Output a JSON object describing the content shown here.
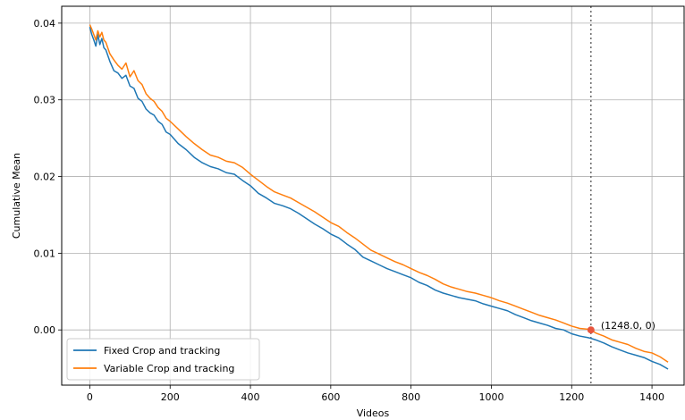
{
  "chart_data": {
    "type": "line",
    "xlabel": "Videos",
    "ylabel": "Cumulative Mean",
    "xlim": [
      -70,
      1480
    ],
    "ylim": [
      -0.0072,
      0.0422
    ],
    "xticks": [
      0,
      200,
      400,
      600,
      800,
      1000,
      1200,
      1400
    ],
    "yticks": [
      0.0,
      0.01,
      0.02,
      0.03,
      0.04
    ],
    "xtick_labels": [
      "0",
      "200",
      "400",
      "600",
      "800",
      "1000",
      "1200",
      "1400"
    ],
    "ytick_labels": [
      "0.00",
      "0.01",
      "0.02",
      "0.03",
      "0.04"
    ],
    "grid": true,
    "legend_position": "lower-left",
    "series": [
      {
        "name": "Fixed Crop and tracking",
        "color": "#1f77b4",
        "x": [
          0,
          5,
          10,
          15,
          20,
          25,
          30,
          35,
          40,
          50,
          60,
          70,
          80,
          90,
          100,
          110,
          120,
          130,
          140,
          150,
          160,
          170,
          180,
          190,
          200,
          220,
          240,
          260,
          280,
          300,
          320,
          340,
          360,
          380,
          400,
          420,
          440,
          460,
          480,
          500,
          520,
          540,
          560,
          580,
          600,
          620,
          640,
          660,
          680,
          700,
          720,
          740,
          760,
          780,
          800,
          820,
          840,
          860,
          880,
          900,
          920,
          940,
          960,
          980,
          1000,
          1020,
          1040,
          1060,
          1080,
          1100,
          1120,
          1140,
          1160,
          1180,
          1200,
          1220,
          1240,
          1248,
          1260,
          1280,
          1300,
          1320,
          1340,
          1360,
          1380,
          1400,
          1420,
          1440
        ],
        "y": [
          0.0395,
          0.0385,
          0.0378,
          0.037,
          0.0385,
          0.0372,
          0.038,
          0.0368,
          0.0365,
          0.035,
          0.0338,
          0.0335,
          0.0328,
          0.0332,
          0.0318,
          0.0315,
          0.0302,
          0.0298,
          0.0288,
          0.0283,
          0.028,
          0.0272,
          0.0268,
          0.0258,
          0.0255,
          0.0243,
          0.0235,
          0.0225,
          0.0218,
          0.0213,
          0.021,
          0.0205,
          0.0203,
          0.0195,
          0.0188,
          0.0178,
          0.0172,
          0.0165,
          0.0162,
          0.0158,
          0.0152,
          0.0145,
          0.0138,
          0.0132,
          0.0125,
          0.012,
          0.0112,
          0.0105,
          0.0095,
          0.009,
          0.0085,
          0.008,
          0.0076,
          0.0072,
          0.0068,
          0.0062,
          0.0058,
          0.0052,
          0.0048,
          0.0045,
          0.0042,
          0.004,
          0.0038,
          0.0034,
          0.0031,
          0.0028,
          0.0025,
          0.002,
          0.0016,
          0.0012,
          0.0009,
          0.0006,
          0.0002,
          0.0,
          -0.0005,
          -0.0008,
          -0.001,
          -0.0011,
          -0.0013,
          -0.0017,
          -0.0022,
          -0.0026,
          -0.003,
          -0.0033,
          -0.0036,
          -0.0041,
          -0.0045,
          -0.0051
        ]
      },
      {
        "name": "Variable Crop and tracking",
        "color": "#ff7f0e",
        "x": [
          0,
          5,
          10,
          15,
          20,
          25,
          30,
          35,
          40,
          50,
          60,
          70,
          80,
          90,
          100,
          110,
          120,
          130,
          140,
          150,
          160,
          170,
          180,
          190,
          200,
          220,
          240,
          260,
          280,
          300,
          320,
          340,
          360,
          380,
          400,
          420,
          440,
          460,
          480,
          500,
          520,
          540,
          560,
          580,
          600,
          620,
          640,
          660,
          680,
          700,
          720,
          740,
          760,
          780,
          800,
          820,
          840,
          860,
          880,
          900,
          920,
          940,
          960,
          980,
          1000,
          1020,
          1040,
          1060,
          1080,
          1100,
          1120,
          1140,
          1160,
          1180,
          1200,
          1220,
          1240,
          1248,
          1260,
          1280,
          1300,
          1320,
          1340,
          1360,
          1380,
          1400,
          1420,
          1440
        ],
        "y": [
          0.0398,
          0.0392,
          0.0385,
          0.0378,
          0.039,
          0.0382,
          0.0388,
          0.0378,
          0.0375,
          0.036,
          0.0352,
          0.0345,
          0.034,
          0.0348,
          0.033,
          0.0338,
          0.0325,
          0.032,
          0.0308,
          0.0302,
          0.0298,
          0.029,
          0.0285,
          0.0276,
          0.0272,
          0.0262,
          0.0252,
          0.0243,
          0.0235,
          0.0228,
          0.0225,
          0.022,
          0.0218,
          0.0212,
          0.0203,
          0.0195,
          0.0187,
          0.018,
          0.0176,
          0.0172,
          0.0166,
          0.016,
          0.0154,
          0.0147,
          0.014,
          0.0135,
          0.0127,
          0.012,
          0.0112,
          0.0104,
          0.0099,
          0.0094,
          0.0089,
          0.0085,
          0.008,
          0.0075,
          0.0071,
          0.0066,
          0.006,
          0.0056,
          0.0053,
          0.005,
          0.0048,
          0.0045,
          0.0042,
          0.0038,
          0.0035,
          0.0031,
          0.0027,
          0.0023,
          0.0019,
          0.0016,
          0.0013,
          0.0009,
          0.0005,
          0.0002,
          0.0001,
          0.0,
          -0.0004,
          -0.0008,
          -0.0013,
          -0.0016,
          -0.0019,
          -0.0024,
          -0.0028,
          -0.003,
          -0.0035,
          -0.0042
        ]
      }
    ],
    "annotation": {
      "label": "(1248.0, 0)",
      "x": 1248,
      "y": 0,
      "marker_color": "#e8553d",
      "vline_x": 1248,
      "vline_color": "#555555"
    }
  }
}
